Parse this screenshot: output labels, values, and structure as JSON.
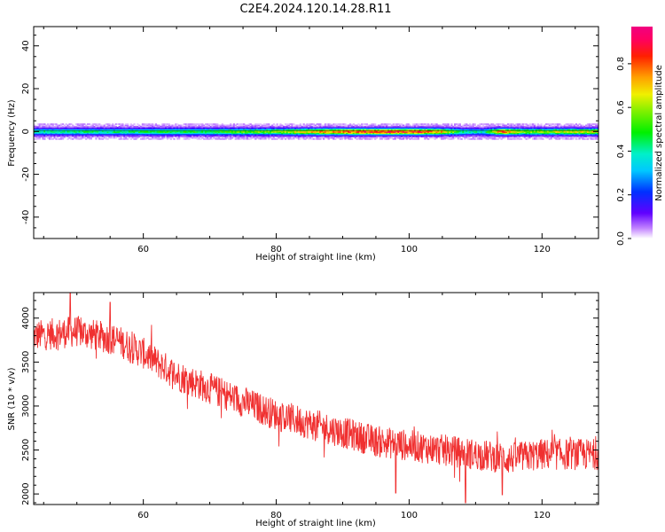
{
  "title": "C2E4.2024.120.14.28.R11",
  "chart_data": [
    {
      "type": "heatmap",
      "title": "C2E4.2024.120.14.28.R11",
      "xlabel": "Height of straight line (km)",
      "ylabel": "Frequency (Hz)",
      "xlim": [
        43.5,
        128.5
      ],
      "ylim": [
        -50,
        49
      ],
      "xticks": [
        60,
        80,
        100,
        120
      ],
      "yticks": [
        40,
        20,
        0,
        -20,
        -40
      ],
      "colorbar": {
        "label": "Normalized spectral amplitude",
        "range": [
          0,
          0.97
        ],
        "ticks": [
          0.0,
          0.2,
          0.4,
          0.6,
          0.8
        ],
        "colormap": "gist_ncar-like (white→purple→blue→cyan→green→yellow→orange→red→magenta)"
      },
      "band": {
        "center_hz": 0,
        "half_width_hz": 2.5,
        "profile": [
          {
            "x": 44,
            "amp": 0.45
          },
          {
            "x": 50,
            "amp": 0.45
          },
          {
            "x": 56,
            "amp": 0.45
          },
          {
            "x": 62,
            "amp": 0.5
          },
          {
            "x": 68,
            "amp": 0.5
          },
          {
            "x": 74,
            "amp": 0.55
          },
          {
            "x": 80,
            "amp": 0.6
          },
          {
            "x": 84,
            "amp": 0.7
          },
          {
            "x": 88,
            "amp": 0.8
          },
          {
            "x": 92,
            "amp": 0.85
          },
          {
            "x": 98,
            "amp": 0.9
          },
          {
            "x": 104,
            "amp": 0.8
          },
          {
            "x": 108,
            "amp": 0.45
          },
          {
            "x": 111,
            "amp": 0.4
          },
          {
            "x": 114,
            "amp": 0.85
          },
          {
            "x": 117,
            "amp": 0.6
          },
          {
            "x": 122,
            "amp": 0.65
          },
          {
            "x": 128,
            "amp": 0.7
          }
        ]
      }
    },
    {
      "type": "line",
      "xlabel": "Height of straight line (km)",
      "ylabel": "SNR (10 * v/v)",
      "xlim": [
        43.5,
        128.5
      ],
      "ylim": [
        1880,
        4290
      ],
      "xticks": [
        60,
        80,
        100,
        120
      ],
      "yticks": [
        2000,
        2500,
        3000,
        3500,
        4000
      ],
      "color": "#f03030",
      "trend": [
        {
          "x": 44,
          "y": 3800
        },
        {
          "x": 50,
          "y": 3850
        },
        {
          "x": 56,
          "y": 3750
        },
        {
          "x": 60,
          "y": 3600
        },
        {
          "x": 65,
          "y": 3350
        },
        {
          "x": 70,
          "y": 3200
        },
        {
          "x": 75,
          "y": 3050
        },
        {
          "x": 80,
          "y": 2900
        },
        {
          "x": 85,
          "y": 2800
        },
        {
          "x": 90,
          "y": 2700
        },
        {
          "x": 95,
          "y": 2600
        },
        {
          "x": 100,
          "y": 2550
        },
        {
          "x": 105,
          "y": 2500
        },
        {
          "x": 110,
          "y": 2450
        },
        {
          "x": 115,
          "y": 2400
        },
        {
          "x": 120,
          "y": 2450
        },
        {
          "x": 125,
          "y": 2450
        },
        {
          "x": 128,
          "y": 2450
        }
      ],
      "noise_amplitude": 180,
      "extremes": [
        {
          "x": 49,
          "y": 4290
        },
        {
          "x": 55,
          "y": 4180
        },
        {
          "x": 98,
          "y": 2010
        },
        {
          "x": 108.5,
          "y": 1900
        },
        {
          "x": 114,
          "y": 1990
        }
      ]
    }
  ]
}
